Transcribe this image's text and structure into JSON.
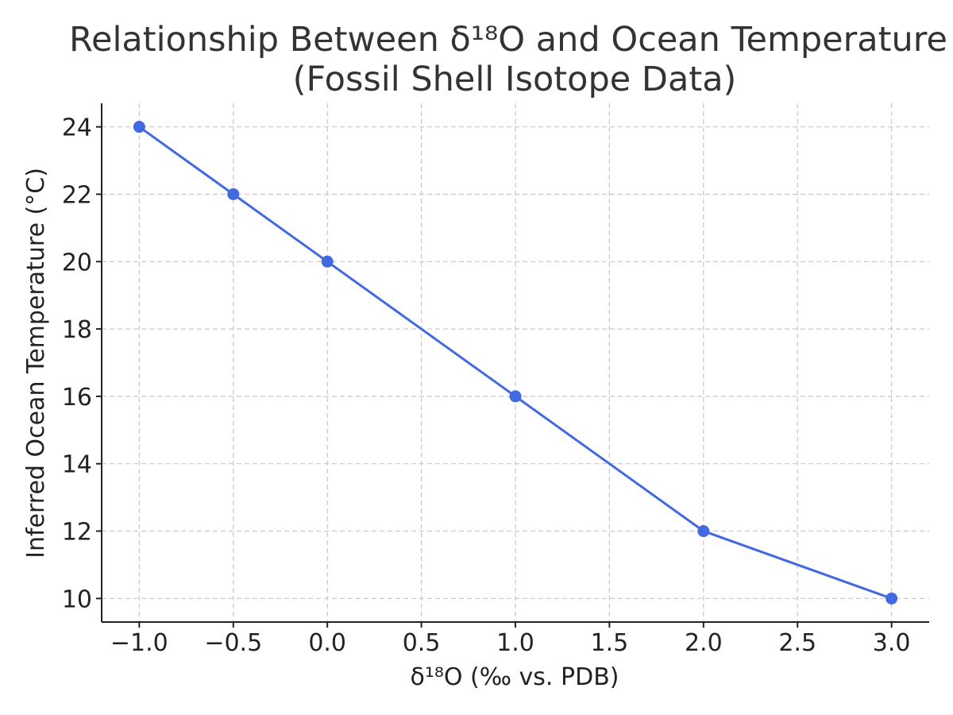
{
  "chart_data": {
    "type": "line",
    "title_lines": [
      "Relationship Between δ¹⁸O and Ocean Temperature",
      "(Fossil Shell Isotope Data)"
    ],
    "xlabel": "δ¹⁸O (‰ vs. PDB)",
    "ylabel": "Inferred Ocean Temperature (°C)",
    "xlim": [
      -1.2,
      3.2
    ],
    "ylim": [
      9.3,
      24.7
    ],
    "x_ticks": [
      -1.0,
      -0.5,
      0.0,
      0.5,
      1.0,
      1.5,
      2.0,
      2.5,
      3.0
    ],
    "x_tick_labels": [
      "−1.0",
      "−0.5",
      "0.0",
      "0.5",
      "1.0",
      "1.5",
      "2.0",
      "2.5",
      "3.0"
    ],
    "y_ticks": [
      10,
      12,
      14,
      16,
      18,
      20,
      22,
      24
    ],
    "y_tick_labels": [
      "10",
      "12",
      "14",
      "16",
      "18",
      "20",
      "22",
      "24"
    ],
    "grid": true,
    "series": [
      {
        "color": "#4169e1",
        "x": [
          -1.0,
          -0.5,
          0.0,
          1.0,
          2.0,
          3.0
        ],
        "y": [
          24,
          22,
          20,
          16,
          12,
          10
        ]
      }
    ]
  }
}
